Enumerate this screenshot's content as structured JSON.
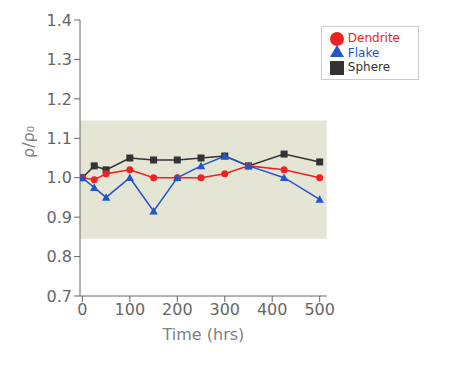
{
  "chart_data": {
    "type": "line",
    "xlabel": "Time (hrs)",
    "ylabel": "ρ/ρ₀",
    "xlim": [
      -5,
      515
    ],
    "xticks": [
      0,
      100,
      200,
      300,
      400,
      500
    ],
    "ylim": [
      0.7,
      1.4
    ],
    "yticks": [
      0.7,
      0.8,
      0.9,
      {
        "value": 1.0,
        "label": "1.0"
      },
      1.1,
      1.2,
      1.3,
      1.4
    ],
    "grid": false,
    "legend": "upper right",
    "bands": [
      {
        "y1": 0.845,
        "y2": 1.145,
        "color": "#e5e5d5"
      }
    ],
    "series": [
      {
        "name": "Sphere",
        "color": "#333333",
        "marker": "square",
        "line_style": "solid",
        "x": [
          0,
          25,
          50,
          100,
          150,
          200,
          250,
          300,
          350,
          425,
          500
        ],
        "values": [
          1.0,
          1.03,
          1.02,
          1.05,
          1.045,
          1.045,
          1.05,
          1.055,
          1.03,
          1.06,
          1.04
        ]
      },
      {
        "name": "Dendrite",
        "color": "#ee2222",
        "marker": "circle",
        "line_style": "solid",
        "x": [
          0,
          25,
          50,
          100,
          150,
          200,
          250,
          300,
          350,
          425,
          500
        ],
        "values": [
          1.0,
          0.995,
          1.01,
          1.02,
          1.0,
          1.0,
          1.0,
          1.01,
          1.03,
          1.02,
          1.0
        ]
      },
      {
        "name": "Flake",
        "color": "#2255cc",
        "marker": "triangle",
        "line_style": "solid",
        "x": [
          0,
          25,
          50,
          100,
          150,
          200,
          250,
          300,
          350,
          425,
          500
        ],
        "values": [
          1.0,
          0.975,
          0.95,
          1.0,
          0.915,
          1.0,
          1.03,
          1.055,
          1.03,
          1.0,
          0.945
        ]
      }
    ]
  }
}
